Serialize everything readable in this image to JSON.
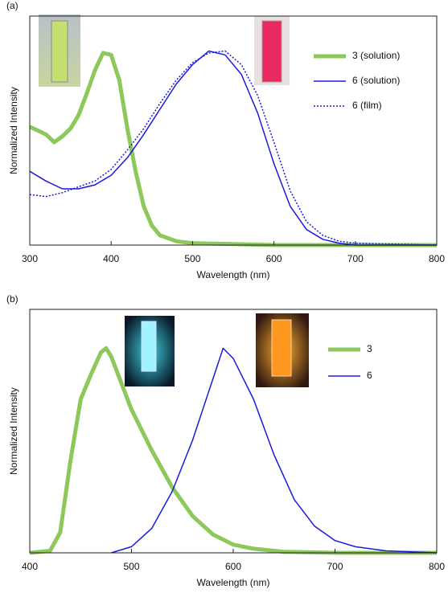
{
  "chart_data": [
    {
      "type": "line",
      "label": "(a)",
      "xlabel": "Wavelength (nm)",
      "ylabel": "Normalized Intensity",
      "xlim": [
        300,
        800
      ],
      "xticks": [
        300,
        400,
        500,
        600,
        700,
        800
      ],
      "ylim": [
        0,
        1.18
      ],
      "series": [
        {
          "name": "3 (solution)",
          "color": "#8cc85a",
          "line_width": 5,
          "dash": "solid",
          "x": [
            300,
            320,
            330,
            340,
            350,
            360,
            370,
            380,
            390,
            400,
            410,
            420,
            430,
            440,
            450,
            460,
            480,
            500,
            550,
            600,
            800
          ],
          "values": [
            0.61,
            0.57,
            0.53,
            0.56,
            0.6,
            0.67,
            0.78,
            0.9,
            0.99,
            0.98,
            0.85,
            0.6,
            0.38,
            0.2,
            0.1,
            0.05,
            0.02,
            0.01,
            0.005,
            0,
            0
          ]
        },
        {
          "name": "6 (solution)",
          "color": "#1a1adc",
          "line_width": 1.5,
          "dash": "solid",
          "x": [
            300,
            320,
            340,
            360,
            380,
            400,
            420,
            440,
            460,
            480,
            500,
            520,
            540,
            560,
            580,
            600,
            620,
            640,
            660,
            680,
            700,
            800
          ],
          "values": [
            0.38,
            0.33,
            0.29,
            0.29,
            0.31,
            0.36,
            0.45,
            0.57,
            0.7,
            0.83,
            0.93,
            1.0,
            0.98,
            0.88,
            0.68,
            0.42,
            0.2,
            0.08,
            0.03,
            0.01,
            0,
            0
          ]
        },
        {
          "name": "6 (film)",
          "color": "#1a1adc",
          "line_width": 1.5,
          "dash": "dotted",
          "x": [
            300,
            320,
            340,
            360,
            380,
            400,
            420,
            440,
            460,
            480,
            500,
            520,
            540,
            560,
            580,
            600,
            620,
            640,
            660,
            680,
            700,
            800
          ],
          "values": [
            0.26,
            0.25,
            0.27,
            0.3,
            0.33,
            0.39,
            0.49,
            0.6,
            0.73,
            0.85,
            0.94,
            0.99,
            1.0,
            0.93,
            0.77,
            0.53,
            0.28,
            0.12,
            0.05,
            0.02,
            0.01,
            0
          ]
        }
      ]
    },
    {
      "type": "line",
      "label": "(b)",
      "xlabel": "Wavelength (nm)",
      "ylabel": "Normalized Intensity",
      "xlim": [
        400,
        800
      ],
      "xticks": [
        400,
        500,
        600,
        700,
        800
      ],
      "ylim": [
        0,
        1.19
      ],
      "series": [
        {
          "name": "3",
          "color": "#8cc85a",
          "line_width": 5,
          "dash": "solid",
          "x": [
            400,
            420,
            430,
            440,
            450,
            460,
            470,
            475,
            480,
            490,
            500,
            520,
            540,
            560,
            580,
            600,
            620,
            650,
            700,
            800
          ],
          "values": [
            0,
            0.01,
            0.1,
            0.45,
            0.75,
            0.87,
            0.98,
            1.0,
            0.96,
            0.83,
            0.7,
            0.5,
            0.32,
            0.18,
            0.09,
            0.04,
            0.02,
            0.005,
            0,
            0
          ]
        },
        {
          "name": "6",
          "color": "#1a1adc",
          "line_width": 1.5,
          "dash": "solid",
          "x": [
            480,
            500,
            520,
            540,
            560,
            580,
            590,
            600,
            620,
            640,
            660,
            680,
            700,
            720,
            750,
            800
          ],
          "values": [
            0,
            0.03,
            0.12,
            0.3,
            0.55,
            0.85,
            1.0,
            0.95,
            0.75,
            0.48,
            0.26,
            0.13,
            0.06,
            0.03,
            0.01,
            0
          ]
        }
      ]
    }
  ]
}
